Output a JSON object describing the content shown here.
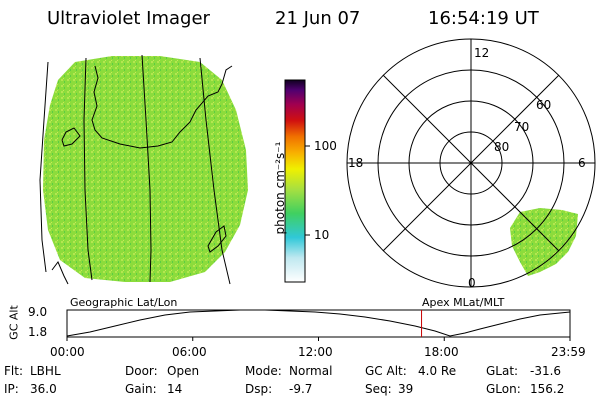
{
  "header": {
    "instrument": "Ultraviolet Imager",
    "date": "21 Jun 07",
    "time": "16:54:19 UT"
  },
  "colorbar": {
    "unit_label": "photon cm⁻²s⁻¹",
    "ticks": [
      "100",
      "10"
    ]
  },
  "polar_plot": {
    "lat_labels": [
      "80",
      "70",
      "60"
    ],
    "mlt_labels": {
      "top": "12",
      "left": "18",
      "right": "6",
      "bottom": "0"
    }
  },
  "projection_labels": {
    "left": "Geographic Lat/Lon",
    "right": "Apex MLat/MLT"
  },
  "altitude_plot": {
    "ylabel": "GC Alt",
    "y_ticks": [
      "9.0",
      "1.8"
    ],
    "x_ticks": [
      "00:00",
      "06:00",
      "12:00",
      "18:00",
      "23:59"
    ],
    "current_time_marker_hours": 16.905
  },
  "status": {
    "filter_key": "Flt:",
    "filter_val": "LBHL",
    "ip_key": "IP:",
    "ip_val": "36.0",
    "door_key": "Door:",
    "door_val": "Open",
    "gain_key": "Gain:",
    "gain_val": "14",
    "mode_key": "Mode:",
    "mode_val": "Normal",
    "dsp_key": "Dsp:",
    "dsp_val": "-9.7",
    "gcalt_key": "GC Alt:",
    "gcalt_val": "4.0 Re",
    "seq_key": "Seq:",
    "seq_val": "39",
    "glat_key": "GLat:",
    "glat_val": "-31.6",
    "glon_key": "GLon:",
    "glon_val": "156.2"
  },
  "colors": {
    "earth_fill": "#8cdc3c",
    "earth_speckle": "#b4e650",
    "marker": "#c80000"
  }
}
